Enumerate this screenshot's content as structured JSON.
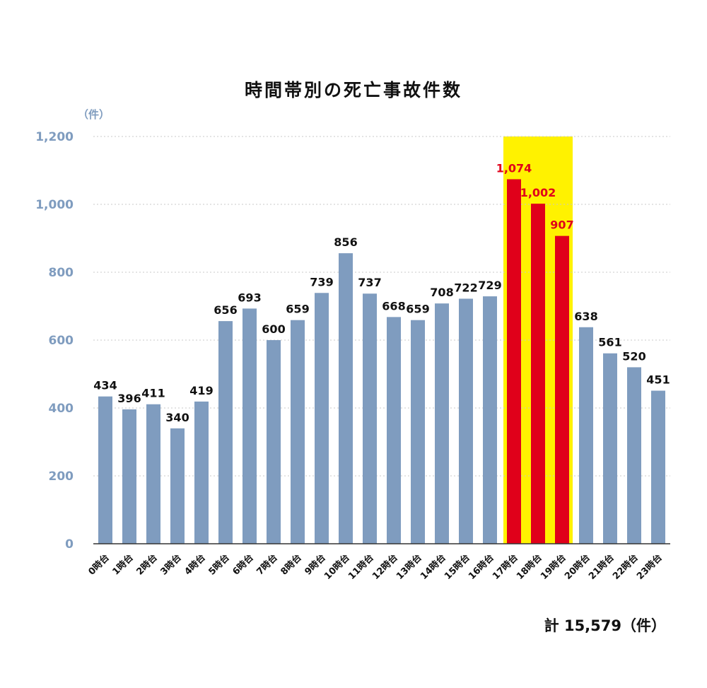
{
  "chart_data": {
    "type": "bar",
    "title": "時間帯別の死亡事故件数",
    "unit_label": "（件）",
    "categories": [
      "0時台",
      "1時台",
      "2時台",
      "3時台",
      "4時台",
      "5時台",
      "6時台",
      "7時台",
      "8時台",
      "9時台",
      "10時台",
      "11時台",
      "12時台",
      "13時台",
      "14時台",
      "15時台",
      "16時台",
      "17時台",
      "18時台",
      "19時台",
      "20時台",
      "21時台",
      "22時台",
      "23時台"
    ],
    "values": [
      434,
      396,
      411,
      340,
      419,
      656,
      693,
      600,
      659,
      739,
      856,
      737,
      668,
      659,
      708,
      722,
      729,
      1074,
      1002,
      907,
      638,
      561,
      520,
      451
    ],
    "value_labels": [
      "434",
      "396",
      "411",
      "340",
      "419",
      "656",
      "693",
      "600",
      "659",
      "739",
      "856",
      "737",
      "668",
      "659",
      "708",
      "722",
      "729",
      "1,074",
      "1,002",
      "907",
      "638",
      "561",
      "520",
      "451"
    ],
    "highlight_indices": [
      17,
      18,
      19
    ],
    "ylim": [
      0,
      1200
    ],
    "yticks": [
      0,
      200,
      400,
      600,
      800,
      1000,
      1200
    ],
    "ytick_labels": [
      "0",
      "200",
      "400",
      "600",
      "800",
      "1,000",
      "1,200"
    ],
    "grid": true,
    "total_label": "計 15,579（件）",
    "colors": {
      "bar": "#7f9cbf",
      "highlight_bar": "#e0001a",
      "highlight_band": "#fff200",
      "highlight_text": "#e0001a",
      "axis_text": "#7f9cbf",
      "label_text": "#111111",
      "grid": "#c8c8c8"
    }
  }
}
